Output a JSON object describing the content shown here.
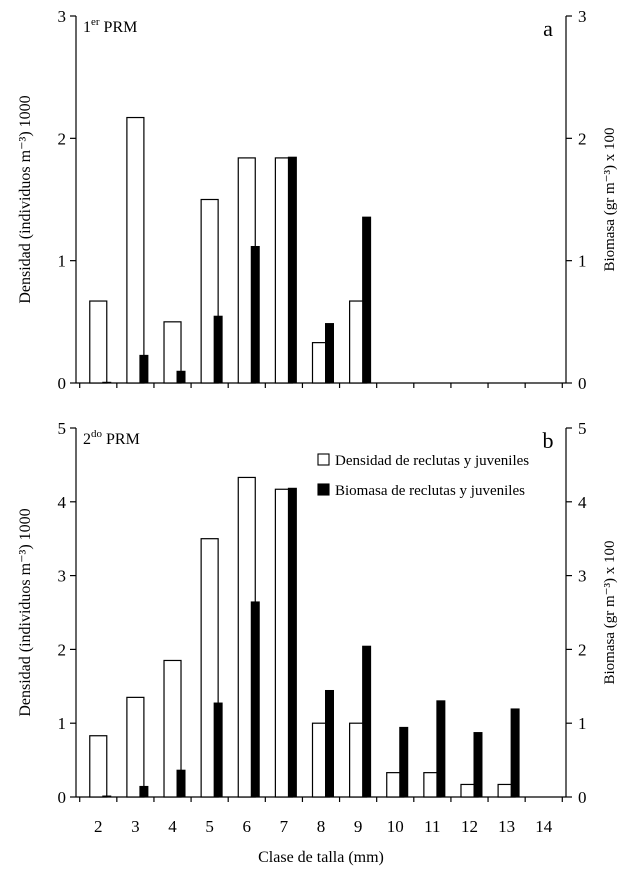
{
  "chart_data": [
    {
      "id": "a",
      "type": "bar",
      "panel_letter": "a",
      "panel_title_main": "1",
      "panel_title_sup": "er",
      "panel_title_rest": " PRM",
      "ylabel_left": "Densidad (individuos m⁻³) 1000",
      "ylabel_right": "Biomasa  (gr m⁻³) x 100",
      "ylim": [
        0,
        3
      ],
      "yticks": [
        "0",
        "1",
        "2",
        "3"
      ],
      "categories": [
        "2",
        "3",
        "4",
        "5",
        "6",
        "7",
        "8",
        "9",
        "10",
        "11",
        "12",
        "13",
        "14"
      ],
      "series": [
        {
          "name": "Densidad de reclutas y juveniles",
          "color": "#ffffff",
          "values": [
            0.67,
            2.17,
            0.5,
            1.5,
            1.84,
            1.84,
            0.33,
            0.67,
            0,
            0,
            0,
            0,
            0
          ]
        },
        {
          "name": "Biomasa de reclutas y juveniles",
          "color": "#000000",
          "values": [
            0.01,
            0.23,
            0.1,
            0.55,
            1.12,
            1.85,
            0.49,
            1.36,
            0,
            0,
            0,
            0,
            0
          ]
        }
      ]
    },
    {
      "id": "b",
      "type": "bar",
      "panel_letter": "b",
      "panel_title_main": "2",
      "panel_title_sup": "do",
      "panel_title_rest": " PRM",
      "ylabel_left": "Densidad (individuos m⁻³) 1000",
      "ylabel_right": "Biomasa  (gr m⁻³) x 100",
      "xlabel": "Clase de talla (mm)",
      "ylim": [
        0,
        5
      ],
      "yticks": [
        "0",
        "1",
        "2",
        "3",
        "4",
        "5"
      ],
      "categories": [
        "2",
        "3",
        "4",
        "5",
        "6",
        "7",
        "8",
        "9",
        "10",
        "11",
        "12",
        "13",
        "14"
      ],
      "legend": [
        "Densidad de reclutas y juveniles",
        "Biomasa de reclutas y juveniles"
      ],
      "series": [
        {
          "name": "Densidad de reclutas y juveniles",
          "color": "#ffffff",
          "values": [
            0.83,
            1.35,
            1.85,
            3.5,
            4.33,
            4.17,
            1.0,
            1.0,
            0.33,
            0.33,
            0.17,
            0.17,
            0
          ]
        },
        {
          "name": "Biomasa de reclutas y juveniles",
          "color": "#000000",
          "values": [
            0.02,
            0.15,
            0.37,
            1.28,
            2.65,
            4.19,
            1.45,
            2.05,
            0.95,
            1.31,
            0.88,
            1.2,
            0
          ]
        }
      ]
    }
  ]
}
